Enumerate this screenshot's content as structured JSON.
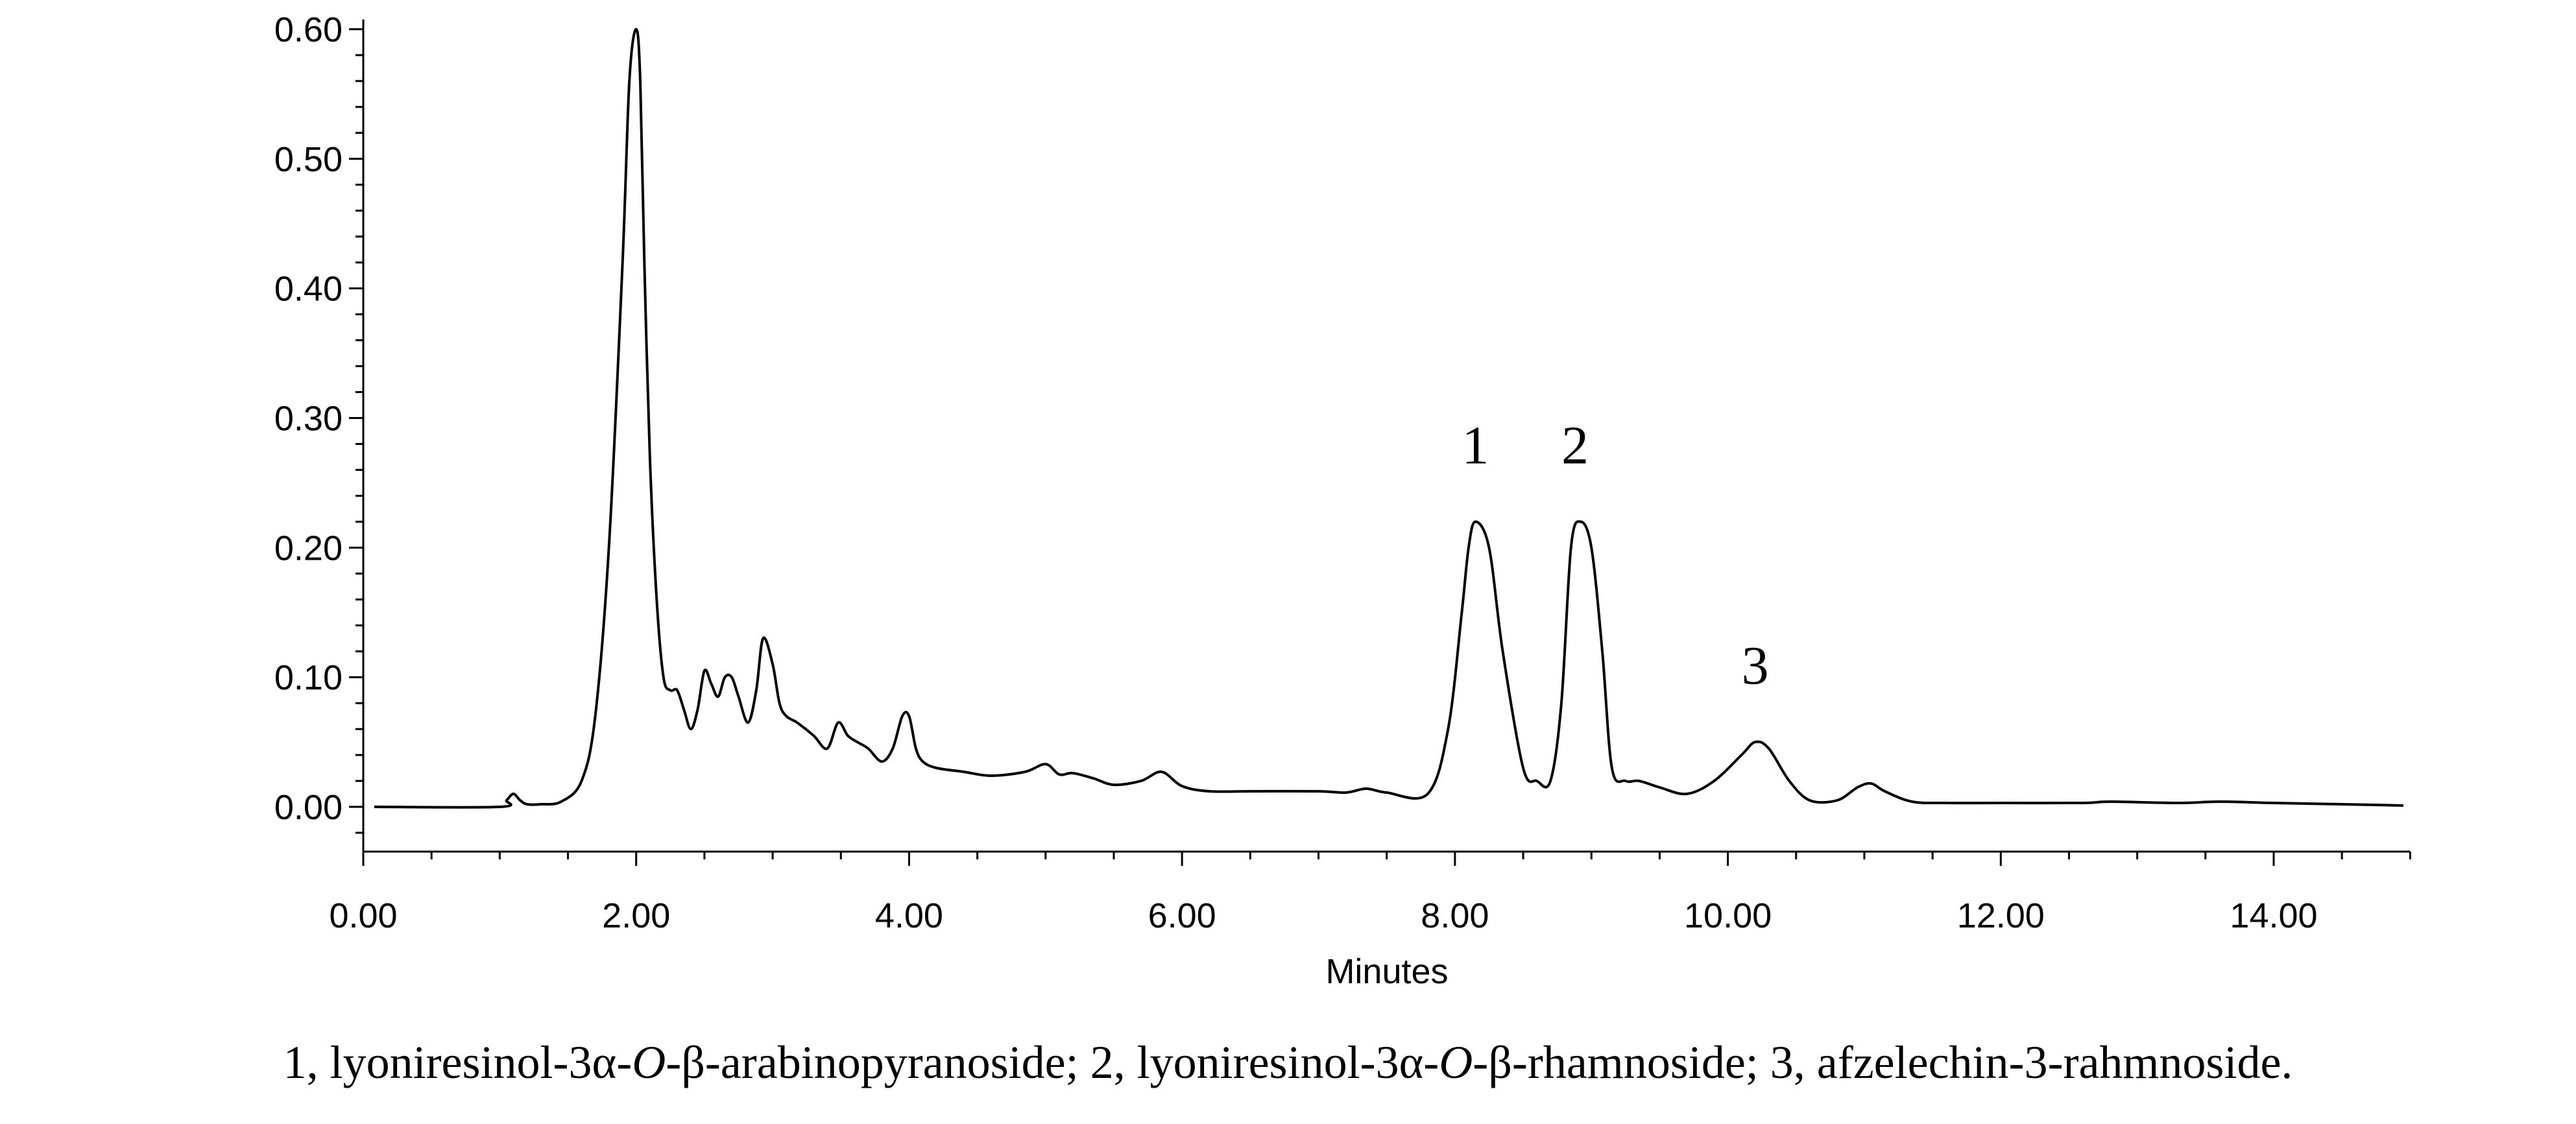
{
  "chart_data": {
    "type": "line",
    "title": "",
    "xlabel": "Minutes",
    "ylabel": "",
    "xlim": [
      0,
      15
    ],
    "ylim": [
      -0.03,
      0.61
    ],
    "x_ticks": [
      "0.00",
      "2.00",
      "4.00",
      "6.00",
      "8.00",
      "10.00",
      "12.00",
      "14.00"
    ],
    "y_ticks": [
      "0.00",
      "0.10",
      "0.20",
      "0.30",
      "0.40",
      "0.50",
      "0.60"
    ],
    "grid": false,
    "legend": "none",
    "series": [
      {
        "x": [
          0.08,
          1.0,
          1.05,
          1.1,
          1.15,
          1.2,
          1.3,
          1.45,
          1.6,
          1.7,
          1.8,
          1.9,
          1.95,
          2.0,
          2.03,
          2.06,
          2.1,
          2.15,
          2.2,
          2.25,
          2.3,
          2.35,
          2.4,
          2.45,
          2.5,
          2.55,
          2.6,
          2.65,
          2.7,
          2.75,
          2.82,
          2.88,
          2.93,
          3.0,
          3.05,
          3.1,
          3.18,
          3.3,
          3.4,
          3.48,
          3.55,
          3.62,
          3.7,
          3.8,
          3.88,
          3.95,
          4.0,
          4.05,
          4.1,
          4.2,
          4.4,
          4.6,
          4.85,
          5.0,
          5.1,
          5.2,
          5.35,
          5.5,
          5.7,
          5.85,
          6.0,
          6.2,
          6.5,
          7.0,
          7.2,
          7.35,
          7.5,
          7.8,
          7.95,
          8.05,
          8.1,
          8.15,
          8.25,
          8.35,
          8.5,
          8.6,
          8.7,
          8.78,
          8.85,
          8.92,
          9.0,
          9.08,
          9.15,
          9.25,
          9.35,
          9.5,
          9.7,
          9.9,
          10.1,
          10.2,
          10.3,
          10.45,
          10.6,
          10.8,
          10.95,
          11.05,
          11.15,
          11.35,
          11.6,
          12.0,
          12.6,
          12.8,
          13.3,
          13.6,
          14.0,
          14.5,
          14.95
        ],
        "y": [
          0.0,
          0.0,
          0.005,
          0.01,
          0.005,
          0.002,
          0.002,
          0.004,
          0.02,
          0.07,
          0.2,
          0.42,
          0.56,
          0.6,
          0.56,
          0.42,
          0.27,
          0.16,
          0.1,
          0.09,
          0.09,
          0.075,
          0.06,
          0.075,
          0.105,
          0.095,
          0.085,
          0.1,
          0.1,
          0.085,
          0.065,
          0.09,
          0.13,
          0.11,
          0.08,
          0.07,
          0.065,
          0.055,
          0.045,
          0.065,
          0.055,
          0.05,
          0.045,
          0.035,
          0.045,
          0.07,
          0.07,
          0.045,
          0.035,
          0.03,
          0.027,
          0.024,
          0.027,
          0.033,
          0.025,
          0.026,
          0.022,
          0.017,
          0.02,
          0.027,
          0.016,
          0.012,
          0.012,
          0.012,
          0.011,
          0.014,
          0.011,
          0.01,
          0.06,
          0.15,
          0.2,
          0.22,
          0.2,
          0.12,
          0.03,
          0.02,
          0.02,
          0.08,
          0.2,
          0.22,
          0.2,
          0.12,
          0.03,
          0.02,
          0.02,
          0.015,
          0.01,
          0.02,
          0.04,
          0.05,
          0.045,
          0.02,
          0.005,
          0.005,
          0.015,
          0.018,
          0.012,
          0.004,
          0.003,
          0.003,
          0.003,
          0.004,
          0.003,
          0.004,
          0.003,
          0.002,
          0.001
        ]
      }
    ],
    "annotations": [
      {
        "text": "1",
        "x": 8.15,
        "y": 0.22
      },
      {
        "text": "2",
        "x": 8.88,
        "y": 0.22
      },
      {
        "text": "3",
        "x": 10.2,
        "y": 0.05
      }
    ]
  },
  "caption": {
    "parts": [
      {
        "text": "1, lyoniresinol-3α-",
        "italic": false
      },
      {
        "text": "O",
        "italic": true
      },
      {
        "text": "-β-arabinopyranoside; 2, lyoniresinol-3α-",
        "italic": false
      },
      {
        "text": "O",
        "italic": true
      },
      {
        "text": "-β-rhamnoside; 3, afzelechin-3-rahmnoside.",
        "italic": false
      }
    ]
  }
}
